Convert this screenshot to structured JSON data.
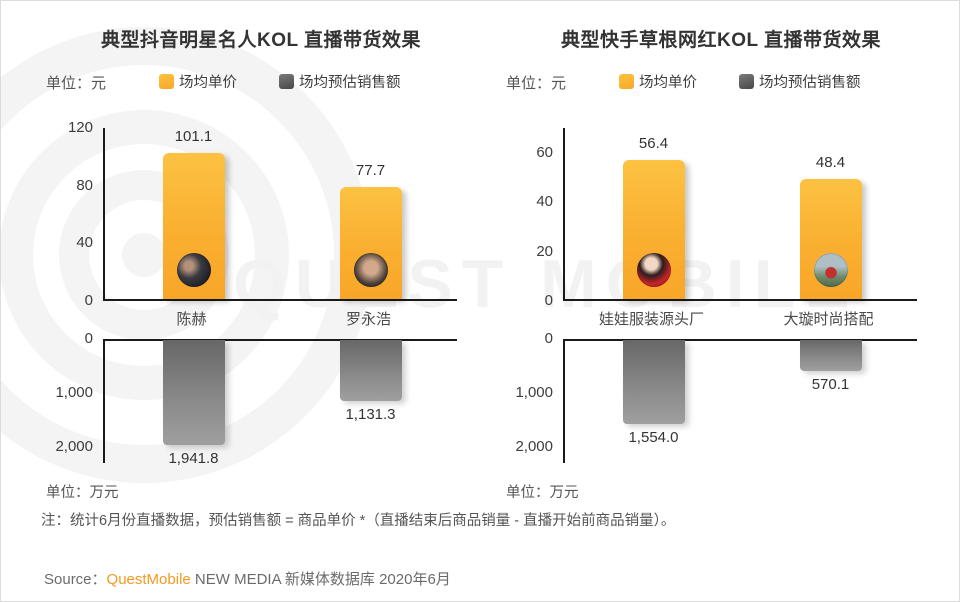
{
  "watermark": "QUEST MOBILE",
  "note": "注：统计6月份直播数据，预估销售额 = 商品单价 *（直播结束后商品销量 - 直播开始前商品销量）。",
  "source": {
    "label": "Source：",
    "brand": "QuestMobile",
    "rest": " NEW MEDIA 新媒体数据库 2020年6月"
  },
  "colors": {
    "price_bar": "#FBB034",
    "sales_bar": "#808080",
    "brand_orange": "#F59A23",
    "axis": "#1a1a1a",
    "watermark_gray": "#f2f2f2"
  },
  "chart_data": [
    {
      "type": "bar",
      "title": "典型抖音明星名人KOL 直播带货效果",
      "unit_top": "单位：元",
      "unit_bottom": "单位：万元",
      "legend_position": "top",
      "grid": false,
      "categories": [
        "陈赫",
        "罗永浩"
      ],
      "avatar_names": [
        "chen-he-avatar",
        "luo-yonghao-avatar"
      ],
      "series": [
        {
          "name": "场均单价",
          "unit": "元",
          "direction": "up",
          "color": "#FBB034",
          "values": [
            101.1,
            77.7
          ],
          "labels": [
            "101.1",
            "77.7"
          ],
          "ylim": [
            0,
            120
          ],
          "ticks": [
            {
              "label": "120",
              "value": 120
            },
            {
              "label": "80",
              "value": 80
            },
            {
              "label": "40",
              "value": 40
            },
            {
              "label": "0",
              "value": 0
            }
          ]
        },
        {
          "name": "场均预估销售额",
          "unit": "万元",
          "direction": "down",
          "color": "#808080",
          "values": [
            1941.8,
            1131.3
          ],
          "labels": [
            "1,941.8",
            "1,131.3"
          ],
          "ylim": [
            0,
            2300
          ],
          "ticks": [
            {
              "label": "0",
              "value": 0
            },
            {
              "label": "1,000",
              "value": 1000
            },
            {
              "label": "2,000",
              "value": 2000
            }
          ]
        }
      ]
    },
    {
      "type": "bar",
      "title": "典型快手草根网红KOL 直播带货效果",
      "unit_top": "单位：元",
      "unit_bottom": "单位：万元",
      "legend_position": "top",
      "grid": false,
      "categories": [
        "娃娃服装源头厂",
        "大璇时尚搭配"
      ],
      "avatar_names": [
        "wawa-clothing-avatar",
        "daxuan-fashion-avatar"
      ],
      "series": [
        {
          "name": "场均单价",
          "unit": "元",
          "direction": "up",
          "color": "#FBB034",
          "values": [
            56.4,
            48.4
          ],
          "labels": [
            "56.4",
            "48.4"
          ],
          "ylim": [
            0,
            70
          ],
          "ticks": [
            {
              "label": "60",
              "value": 60
            },
            {
              "label": "40",
              "value": 40
            },
            {
              "label": "20",
              "value": 20
            },
            {
              "label": "0",
              "value": 0
            }
          ]
        },
        {
          "name": "场均预估销售额",
          "unit": "万元",
          "direction": "down",
          "color": "#808080",
          "values": [
            1554.0,
            570.1
          ],
          "labels": [
            "1,554.0",
            "570.1"
          ],
          "ylim": [
            0,
            2300
          ],
          "ticks": [
            {
              "label": "0",
              "value": 0
            },
            {
              "label": "1,000",
              "value": 1000
            },
            {
              "label": "2,000",
              "value": 2000
            }
          ]
        }
      ]
    }
  ]
}
